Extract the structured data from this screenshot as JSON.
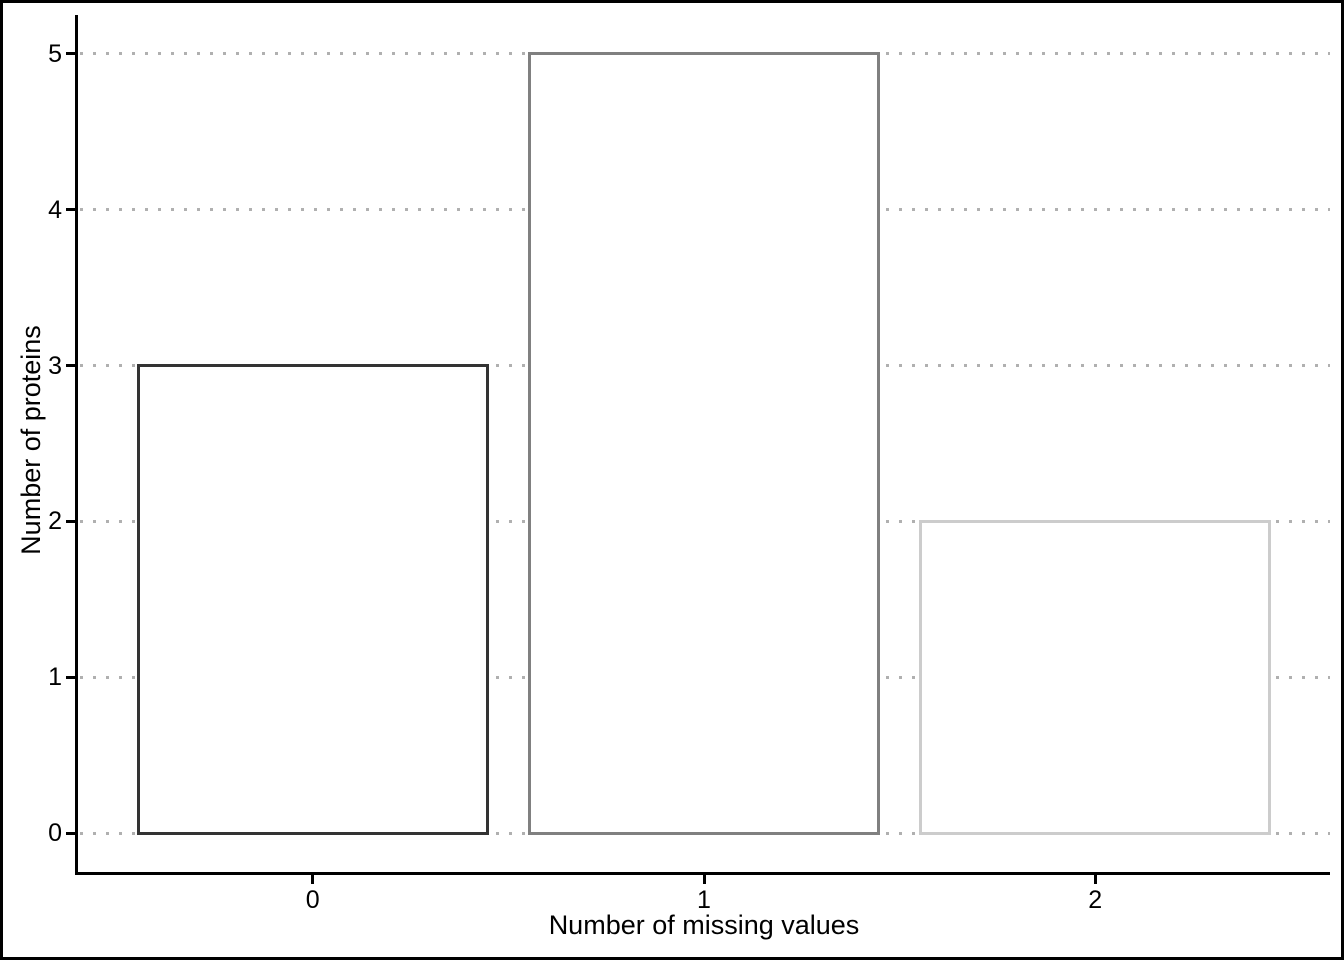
{
  "figure": {
    "background": "#ffffff",
    "border_color": "#000000",
    "text_color": "#000000"
  },
  "chart_data": {
    "type": "bar",
    "title": "",
    "xlabel": "Number of missing values",
    "ylabel": "Number of proteins",
    "categories": [
      "0",
      "1",
      "2"
    ],
    "values": [
      3,
      5,
      2
    ],
    "ylim": [
      0,
      5
    ],
    "y_ticks": [
      0,
      1,
      2,
      3,
      4,
      5
    ],
    "bar_fill": "#ffffff",
    "bar_outline_colors": [
      "#333333",
      "#808080",
      "#cccccc"
    ],
    "axis_color": "#000000",
    "gridline_color": "#b0b0b0",
    "grid": "horizontal-dotted",
    "legend": "none"
  }
}
